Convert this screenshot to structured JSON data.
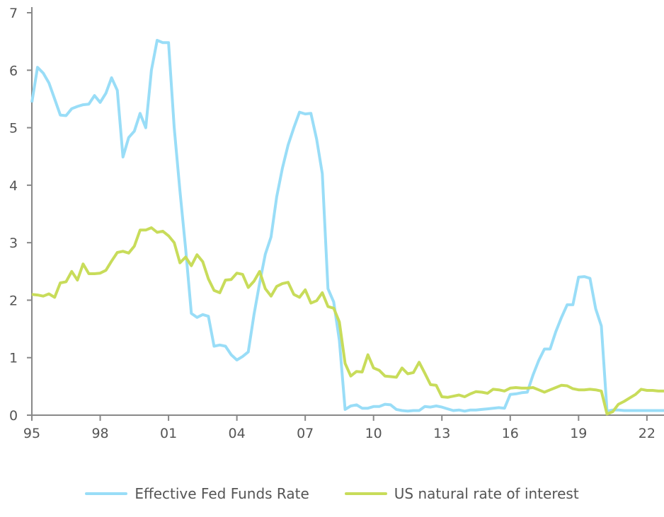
{
  "chart_data": {
    "type": "line",
    "title": "",
    "xlabel": "",
    "ylabel": "",
    "ylim": [
      0,
      7
    ],
    "xlim": [
      1995.0,
      2022.75
    ],
    "y_ticks": [
      "0",
      "1",
      "2",
      "3",
      "4",
      "5",
      "6",
      "7"
    ],
    "x_ticks": [
      {
        "value": 1995,
        "label": "95"
      },
      {
        "value": 1998,
        "label": "98"
      },
      {
        "value": 2001,
        "label": "01"
      },
      {
        "value": 2004,
        "label": "04"
      },
      {
        "value": 2007,
        "label": "07"
      },
      {
        "value": 2010,
        "label": "10"
      },
      {
        "value": 2013,
        "label": "13"
      },
      {
        "value": 2016,
        "label": "16"
      },
      {
        "value": 2019,
        "label": "19"
      },
      {
        "value": 2022,
        "label": "22"
      }
    ],
    "grid": false,
    "legend_position": "bottom",
    "x": [
      1995.0,
      1995.25,
      1995.5,
      1995.75,
      1996.0,
      1996.25,
      1996.5,
      1996.75,
      1997.0,
      1997.25,
      1997.5,
      1997.75,
      1998.0,
      1998.25,
      1998.5,
      1998.75,
      1999.0,
      1999.25,
      1999.5,
      1999.75,
      2000.0,
      2000.25,
      2000.5,
      2000.75,
      2001.0,
      2001.25,
      2001.5,
      2001.75,
      2002.0,
      2002.25,
      2002.5,
      2002.75,
      2003.0,
      2003.25,
      2003.5,
      2003.75,
      2004.0,
      2004.25,
      2004.5,
      2004.75,
      2005.0,
      2005.25,
      2005.5,
      2005.75,
      2006.0,
      2006.25,
      2006.5,
      2006.75,
      2007.0,
      2007.25,
      2007.5,
      2007.75,
      2008.0,
      2008.25,
      2008.5,
      2008.75,
      2009.0,
      2009.25,
      2009.5,
      2009.75,
      2010.0,
      2010.25,
      2010.5,
      2010.75,
      2011.0,
      2011.25,
      2011.5,
      2011.75,
      2012.0,
      2012.25,
      2012.5,
      2012.75,
      2013.0,
      2013.25,
      2013.5,
      2013.75,
      2014.0,
      2014.25,
      2014.5,
      2014.75,
      2015.0,
      2015.25,
      2015.5,
      2015.75,
      2016.0,
      2016.25,
      2016.5,
      2016.75,
      2017.0,
      2017.25,
      2017.5,
      2017.75,
      2018.0,
      2018.25,
      2018.5,
      2018.75,
      2019.0,
      2019.25,
      2019.5,
      2019.75,
      2020.0,
      2020.25,
      2020.5,
      2020.75,
      2021.0,
      2021.25,
      2021.5,
      2021.75,
      2022.0,
      2022.25,
      2022.5,
      2022.75
    ],
    "series": [
      {
        "name": "Effective Fed Funds Rate",
        "color": "#99DDF7",
        "values": [
          5.44,
          6.05,
          5.95,
          5.78,
          5.5,
          5.22,
          5.21,
          5.33,
          5.37,
          5.4,
          5.41,
          5.56,
          5.44,
          5.6,
          5.87,
          5.65,
          4.49,
          4.83,
          4.94,
          5.25,
          5.0,
          6.0,
          6.52,
          6.48,
          6.48,
          5.0,
          3.9,
          2.9,
          1.77,
          1.7,
          1.75,
          1.72,
          1.2,
          1.22,
          1.2,
          1.05,
          0.96,
          1.02,
          1.1,
          1.75,
          2.3,
          2.8,
          3.1,
          3.8,
          4.3,
          4.7,
          5.0,
          5.27,
          5.24,
          5.25,
          4.8,
          4.2,
          2.2,
          1.97,
          1.3,
          0.1,
          0.16,
          0.18,
          0.12,
          0.12,
          0.15,
          0.15,
          0.19,
          0.18,
          0.1,
          0.08,
          0.07,
          0.08,
          0.08,
          0.15,
          0.14,
          0.16,
          0.14,
          0.11,
          0.08,
          0.09,
          0.07,
          0.09,
          0.09,
          0.1,
          0.11,
          0.12,
          0.13,
          0.12,
          0.36,
          0.37,
          0.39,
          0.4,
          0.7,
          0.95,
          1.15,
          1.15,
          1.45,
          1.7,
          1.92,
          1.92,
          2.4,
          2.41,
          2.38,
          1.85,
          1.55,
          0.07,
          0.09,
          0.09,
          0.08,
          0.08,
          0.08,
          0.08,
          0.08,
          0.08,
          0.08,
          0.08
        ]
      },
      {
        "name": "US natural rate of interest",
        "color": "#C8DC5A",
        "values": [
          2.1,
          2.09,
          2.07,
          2.11,
          2.05,
          2.3,
          2.32,
          2.5,
          2.35,
          2.63,
          2.46,
          2.46,
          2.47,
          2.52,
          2.68,
          2.83,
          2.85,
          2.82,
          2.94,
          3.22,
          3.22,
          3.26,
          3.18,
          3.2,
          3.12,
          3.0,
          2.65,
          2.75,
          2.6,
          2.79,
          2.67,
          2.37,
          2.17,
          2.13,
          2.35,
          2.36,
          2.47,
          2.45,
          2.22,
          2.33,
          2.5,
          2.2,
          2.07,
          2.24,
          2.29,
          2.31,
          2.1,
          2.05,
          2.18,
          1.95,
          1.99,
          2.13,
          1.89,
          1.86,
          1.62,
          0.9,
          0.68,
          0.76,
          0.75,
          1.05,
          0.82,
          0.78,
          0.68,
          0.67,
          0.66,
          0.82,
          0.72,
          0.74,
          0.92,
          0.73,
          0.53,
          0.52,
          0.32,
          0.31,
          0.33,
          0.35,
          0.32,
          0.37,
          0.41,
          0.4,
          0.38,
          0.45,
          0.44,
          0.42,
          0.47,
          0.48,
          0.47,
          0.47,
          0.48,
          0.44,
          0.4,
          0.44,
          0.48,
          0.52,
          0.51,
          0.46,
          0.44,
          0.44,
          0.45,
          0.44,
          0.42,
          0.02,
          0.06,
          0.19,
          0.24,
          0.3,
          0.36,
          0.45,
          0.43,
          0.43,
          0.42,
          0.42
        ]
      }
    ]
  }
}
